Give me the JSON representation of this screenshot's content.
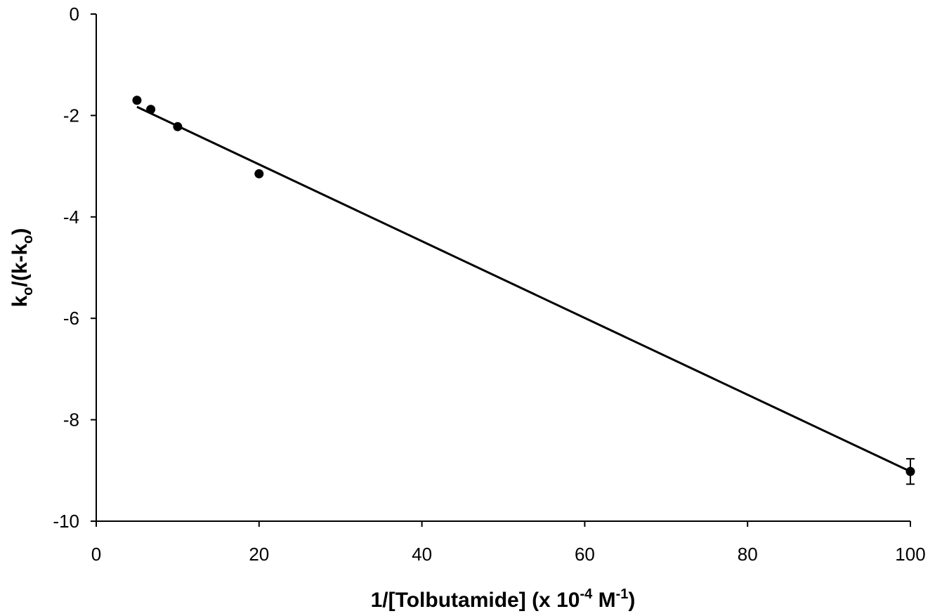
{
  "chart_data": {
    "type": "scatter",
    "xlabel": {
      "main": "1/[Tolbutamide]  (x 10",
      "sup1": "-4",
      "mid": " M",
      "sup2": "-1",
      "end": ")"
    },
    "ylabel": {
      "k1": "k",
      "sub1": "o",
      "mid": "/(k-k",
      "sub2": "o",
      "end": ")"
    },
    "xlim": [
      0,
      100
    ],
    "ylim": [
      -10,
      0
    ],
    "xticks": [
      "0",
      "20",
      "40",
      "60",
      "80",
      "100"
    ],
    "yticks": [
      "0",
      "-2",
      "-4",
      "-6",
      "-8",
      "-10"
    ],
    "points": [
      {
        "x": 5,
        "y": -1.7
      },
      {
        "x": 6.7,
        "y": -1.88
      },
      {
        "x": 10,
        "y": -2.22
      },
      {
        "x": 20,
        "y": -3.15
      },
      {
        "x": 100,
        "y": -9.02,
        "err": 0.25
      }
    ],
    "fit_line": {
      "x": [
        5,
        100
      ],
      "y": [
        -1.83,
        -9.02
      ]
    },
    "grid": false,
    "legend": "none"
  }
}
